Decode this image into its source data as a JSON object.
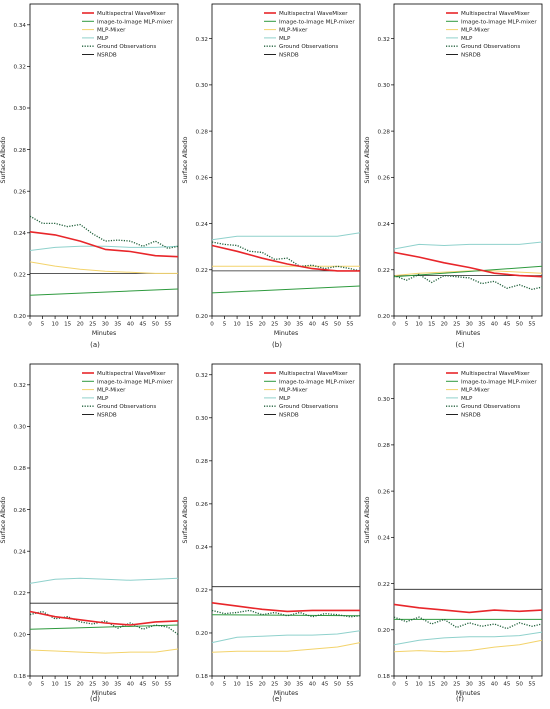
{
  "chart_data": [
    {
      "panel_label": "(a)",
      "type": "line",
      "xlabel": "Minutes",
      "ylabel": "Surface Albedo",
      "xlim": [
        0,
        59
      ],
      "xticks": [
        0,
        5,
        10,
        15,
        20,
        25,
        30,
        35,
        40,
        45,
        50,
        55
      ],
      "ylim": [
        0.2,
        0.35
      ],
      "yticks": [
        0.2,
        0.22,
        0.24,
        0.26,
        0.28,
        0.3,
        0.32,
        0.34
      ],
      "legend": "top-right",
      "series": [
        {
          "name": "Multispectral WaveMixer",
          "x": [
            0,
            10,
            20,
            30,
            40,
            50,
            59
          ],
          "values": [
            0.2405,
            0.239,
            0.236,
            0.232,
            0.231,
            0.229,
            0.2285
          ]
        },
        {
          "name": "Image-to-Image MLP-mixer",
          "x": [
            0,
            59
          ],
          "values": [
            0.21,
            0.213
          ]
        },
        {
          "name": "MLP-Mixer",
          "x": [
            0,
            10,
            20,
            30,
            40,
            50,
            59
          ],
          "values": [
            0.226,
            0.224,
            0.2225,
            0.2215,
            0.221,
            0.2205,
            0.2205
          ]
        },
        {
          "name": "MLP",
          "x": [
            0,
            10,
            20,
            30,
            40,
            50,
            59
          ],
          "values": [
            0.2315,
            0.233,
            0.2335,
            0.2335,
            0.233,
            0.233,
            0.2335
          ]
        },
        {
          "name": "Ground Observations",
          "x": [
            0,
            5,
            10,
            15,
            20,
            25,
            30,
            35,
            40,
            45,
            50,
            55,
            59
          ],
          "values": [
            0.248,
            0.2445,
            0.2445,
            0.243,
            0.244,
            0.2395,
            0.236,
            0.2365,
            0.236,
            0.2335,
            0.236,
            0.2325,
            0.2335
          ]
        },
        {
          "name": "NSRDB",
          "x": [
            0,
            59
          ],
          "values": [
            0.2205,
            0.2205
          ]
        }
      ]
    },
    {
      "panel_label": "(b)",
      "type": "line",
      "xlabel": "Minutes",
      "ylabel": "Surface Albedo",
      "xlim": [
        0,
        59
      ],
      "xticks": [
        0,
        5,
        10,
        15,
        20,
        25,
        30,
        35,
        40,
        45,
        50,
        55
      ],
      "ylim": [
        0.2,
        0.335
      ],
      "yticks": [
        0.2,
        0.22,
        0.24,
        0.26,
        0.28,
        0.3,
        0.32
      ],
      "legend": "top-right",
      "series": [
        {
          "name": "Multispectral WaveMixer",
          "x": [
            0,
            10,
            20,
            30,
            40,
            50,
            59
          ],
          "values": [
            0.2305,
            0.228,
            0.225,
            0.2225,
            0.2205,
            0.2195,
            0.2195
          ]
        },
        {
          "name": "Image-to-Image MLP-mixer",
          "x": [
            0,
            59
          ],
          "values": [
            0.21,
            0.213
          ]
        },
        {
          "name": "MLP-Mixer",
          "x": [
            0,
            10,
            20,
            30,
            40,
            50,
            59
          ],
          "values": [
            0.2215,
            0.2215,
            0.2215,
            0.2215,
            0.2215,
            0.2215,
            0.2215
          ]
        },
        {
          "name": "MLP",
          "x": [
            0,
            10,
            20,
            30,
            40,
            50,
            59
          ],
          "values": [
            0.233,
            0.2345,
            0.2345,
            0.2345,
            0.2345,
            0.2345,
            0.236
          ]
        },
        {
          "name": "Ground Observations",
          "x": [
            0,
            5,
            10,
            15,
            20,
            25,
            30,
            35,
            40,
            45,
            50,
            55,
            59
          ],
          "values": [
            0.232,
            0.231,
            0.2305,
            0.228,
            0.2275,
            0.2245,
            0.225,
            0.2215,
            0.222,
            0.2205,
            0.2215,
            0.2205,
            0.2195
          ]
        },
        {
          "name": "NSRDB",
          "x": [
            0,
            59
          ],
          "values": [
            0.2195,
            0.2195
          ]
        }
      ]
    },
    {
      "panel_label": "(c)",
      "type": "line",
      "xlabel": "Minutes",
      "ylabel": "Surface Albedo",
      "xlim": [
        0,
        59
      ],
      "xticks": [
        0,
        5,
        10,
        15,
        20,
        25,
        30,
        35,
        40,
        45,
        50,
        55
      ],
      "ylim": [
        0.2,
        0.335
      ],
      "yticks": [
        0.2,
        0.22,
        0.24,
        0.26,
        0.28,
        0.3,
        0.32
      ],
      "legend": "top-right",
      "series": [
        {
          "name": "Multispectral WaveMixer",
          "x": [
            0,
            10,
            20,
            30,
            40,
            50,
            59
          ],
          "values": [
            0.2275,
            0.2255,
            0.223,
            0.221,
            0.2185,
            0.2175,
            0.217
          ]
        },
        {
          "name": "Image-to-Image MLP-mixer",
          "x": [
            0,
            59
          ],
          "values": [
            0.217,
            0.2215
          ]
        },
        {
          "name": "MLP-Mixer",
          "x": [
            0,
            10,
            20,
            30,
            40,
            50,
            59
          ],
          "values": [
            0.2175,
            0.2185,
            0.219,
            0.2195,
            0.2195,
            0.219,
            0.2185
          ]
        },
        {
          "name": "MLP",
          "x": [
            0,
            10,
            20,
            30,
            40,
            50,
            59
          ],
          "values": [
            0.229,
            0.231,
            0.2305,
            0.231,
            0.231,
            0.231,
            0.232
          ]
        },
        {
          "name": "Ground Observations",
          "x": [
            0,
            5,
            10,
            15,
            20,
            25,
            30,
            35,
            40,
            45,
            50,
            55,
            59
          ],
          "values": [
            0.2175,
            0.2155,
            0.218,
            0.2145,
            0.2175,
            0.217,
            0.2165,
            0.214,
            0.215,
            0.212,
            0.2135,
            0.2115,
            0.2125
          ]
        },
        {
          "name": "NSRDB",
          "x": [
            0,
            59
          ],
          "values": [
            0.2175,
            0.2175
          ]
        }
      ]
    },
    {
      "panel_label": "(d)",
      "type": "line",
      "xlabel": "Minutes",
      "ylabel": "Surface Albedo",
      "xlim": [
        0,
        59
      ],
      "xticks": [
        0,
        5,
        10,
        15,
        20,
        25,
        30,
        35,
        40,
        45,
        50,
        55
      ],
      "ylim": [
        0.18,
        0.33
      ],
      "yticks": [
        0.18,
        0.2,
        0.22,
        0.24,
        0.26,
        0.28,
        0.3,
        0.32
      ],
      "legend": "top-right",
      "series": [
        {
          "name": "Multispectral WaveMixer",
          "x": [
            0,
            10,
            20,
            30,
            40,
            50,
            59
          ],
          "values": [
            0.211,
            0.2085,
            0.207,
            0.2055,
            0.2045,
            0.206,
            0.2065
          ]
        },
        {
          "name": "Image-to-Image MLP-mixer",
          "x": [
            0,
            59
          ],
          "values": [
            0.2025,
            0.2045
          ]
        },
        {
          "name": "MLP-Mixer",
          "x": [
            0,
            10,
            20,
            30,
            40,
            50,
            59
          ],
          "values": [
            0.1925,
            0.192,
            0.1915,
            0.191,
            0.1915,
            0.1915,
            0.193
          ]
        },
        {
          "name": "MLP",
          "x": [
            0,
            10,
            20,
            30,
            40,
            50,
            59
          ],
          "values": [
            0.2245,
            0.2265,
            0.227,
            0.2265,
            0.226,
            0.2265,
            0.227
          ]
        },
        {
          "name": "Ground Observations",
          "x": [
            0,
            5,
            10,
            15,
            20,
            25,
            30,
            35,
            40,
            45,
            50,
            55,
            59
          ],
          "values": [
            0.2095,
            0.211,
            0.2075,
            0.2085,
            0.206,
            0.205,
            0.2065,
            0.203,
            0.2055,
            0.2025,
            0.2045,
            0.2035,
            0.2
          ]
        },
        {
          "name": "NSRDB",
          "x": [
            0,
            59
          ],
          "values": [
            0.215,
            0.215
          ]
        }
      ]
    },
    {
      "panel_label": "(e)",
      "type": "line",
      "xlabel": "Minutes",
      "ylabel": "Surface Albedo",
      "xlim": [
        0,
        59
      ],
      "xticks": [
        0,
        5,
        10,
        15,
        20,
        25,
        30,
        35,
        40,
        45,
        50,
        55
      ],
      "ylim": [
        0.18,
        0.325
      ],
      "yticks": [
        0.18,
        0.2,
        0.22,
        0.24,
        0.26,
        0.28,
        0.3,
        0.32
      ],
      "legend": "top-right",
      "series": [
        {
          "name": "Multispectral WaveMixer",
          "x": [
            0,
            10,
            20,
            30,
            40,
            50,
            59
          ],
          "values": [
            0.214,
            0.2125,
            0.211,
            0.21,
            0.2105,
            0.2105,
            0.2105
          ]
        },
        {
          "name": "Image-to-Image MLP-mixer",
          "x": [
            0,
            59
          ],
          "values": [
            0.2085,
            0.208
          ]
        },
        {
          "name": "MLP-Mixer",
          "x": [
            0,
            10,
            20,
            30,
            40,
            50,
            59
          ],
          "values": [
            0.191,
            0.1915,
            0.1915,
            0.1915,
            0.1925,
            0.1935,
            0.1955
          ]
        },
        {
          "name": "MLP",
          "x": [
            0,
            10,
            20,
            30,
            40,
            50,
            59
          ],
          "values": [
            0.1955,
            0.198,
            0.1985,
            0.199,
            0.199,
            0.1995,
            0.201
          ]
        },
        {
          "name": "Ground Observations",
          "x": [
            0,
            5,
            10,
            15,
            20,
            25,
            30,
            35,
            40,
            45,
            50,
            55,
            59
          ],
          "values": [
            0.2105,
            0.209,
            0.2095,
            0.2105,
            0.2085,
            0.2095,
            0.208,
            0.2095,
            0.2075,
            0.209,
            0.2085,
            0.2075,
            0.208
          ]
        },
        {
          "name": "NSRDB",
          "x": [
            0,
            59
          ],
          "values": [
            0.2215,
            0.2215
          ]
        }
      ]
    },
    {
      "panel_label": "(f)",
      "type": "line",
      "xlabel": "Minutes",
      "ylabel": "Surface Albedo",
      "xlim": [
        0,
        59
      ],
      "xticks": [
        0,
        5,
        10,
        15,
        20,
        25,
        30,
        35,
        40,
        45,
        50,
        55
      ],
      "ylim": [
        0.18,
        0.315
      ],
      "yticks": [
        0.18,
        0.2,
        0.22,
        0.24,
        0.26,
        0.28,
        0.3
      ],
      "legend": "top-right",
      "series": [
        {
          "name": "Multispectral WaveMixer",
          "x": [
            0,
            10,
            20,
            30,
            40,
            50,
            59
          ],
          "values": [
            0.211,
            0.2095,
            0.2085,
            0.2075,
            0.2085,
            0.208,
            0.2085
          ]
        },
        {
          "name": "Image-to-Image MLP-mixer",
          "x": [
            0,
            59
          ],
          "values": [
            0.2045,
            0.2045
          ]
        },
        {
          "name": "MLP-Mixer",
          "x": [
            0,
            10,
            20,
            30,
            40,
            50,
            59
          ],
          "values": [
            0.1905,
            0.191,
            0.1905,
            0.191,
            0.1925,
            0.1935,
            0.1955
          ]
        },
        {
          "name": "MLP",
          "x": [
            0,
            10,
            20,
            30,
            40,
            50,
            59
          ],
          "values": [
            0.1935,
            0.1955,
            0.1965,
            0.197,
            0.197,
            0.1975,
            0.199
          ]
        },
        {
          "name": "Ground Observations",
          "x": [
            0,
            5,
            10,
            15,
            20,
            25,
            30,
            35,
            40,
            45,
            50,
            55,
            59
          ],
          "values": [
            0.2055,
            0.2035,
            0.2055,
            0.2025,
            0.2045,
            0.201,
            0.203,
            0.2015,
            0.2025,
            0.2005,
            0.203,
            0.2015,
            0.2025
          ]
        },
        {
          "name": "NSRDB",
          "x": [
            0,
            59
          ],
          "values": [
            0.2175,
            0.2175
          ]
        }
      ]
    }
  ],
  "colors": {
    "Multispectral WaveMixer": "#e8262a",
    "Image-to-Image MLP-mixer": "#2e9a3e",
    "MLP-Mixer": "#f3d36b",
    "MLP": "#8fd1cc",
    "Ground Observations": "#1f5f3a",
    "NSRDB": "#222222"
  }
}
